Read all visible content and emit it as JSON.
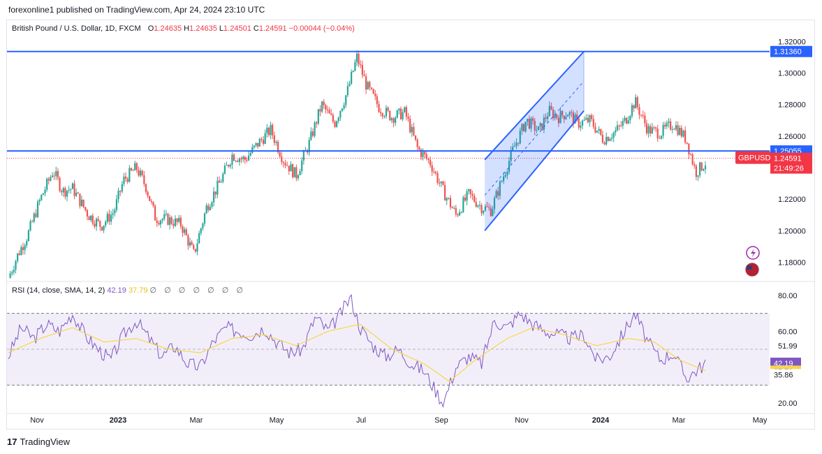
{
  "header": {
    "publisher": "forexonline1 published on TradingView.com, Apr 24, 2024 23:10 UTC"
  },
  "legend": {
    "symbol": "British Pound / U.S. Dollar, 1D, FXCM",
    "o_label": "O",
    "o": "1.24635",
    "h_label": "H",
    "h": "1.24635",
    "l_label": "L",
    "l": "1.24501",
    "c_label": "C",
    "c": "1.24591",
    "change": "−0.00044 (−0.04%)"
  },
  "rsi_legend": {
    "label": "RSI (14, close, SMA, 14, 2)",
    "rsi": "42.19",
    "sma": "37.79",
    "icons": "∅ ∅ ∅ ∅ ∅ ∅ ∅"
  },
  "footer": {
    "brand": "TradingView",
    "logo": "17"
  },
  "colors": {
    "up": "#26a69a",
    "down": "#ef5350",
    "line": "#2962ff",
    "rsi": "#7e57c2",
    "rsi_sma": "#f7d64b",
    "badge_blue": "#2962ff",
    "badge_red": "#f23645"
  },
  "chart_data": [
    {
      "type": "candlestick",
      "symbol": "GBPUSD",
      "ylim": [
        1.17,
        1.325
      ],
      "y_ticks": [
        "1.32000",
        "1.30000",
        "1.28000",
        "1.26000",
        "1.22000",
        "1.20000",
        "1.18000"
      ],
      "x_ticks": [
        "Nov",
        "2023",
        "Mar",
        "May",
        "Jul",
        "Sep",
        "Nov",
        "2024",
        "Mar",
        "May"
      ],
      "price_points": [
        {
          "x": 0,
          "y": 1.17
        },
        {
          "x": 0.015,
          "y": 1.185
        },
        {
          "x": 0.03,
          "y": 1.197
        },
        {
          "x": 0.05,
          "y": 1.22
        },
        {
          "x": 0.07,
          "y": 1.238
        },
        {
          "x": 0.085,
          "y": 1.225
        },
        {
          "x": 0.1,
          "y": 1.227
        },
        {
          "x": 0.125,
          "y": 1.21
        },
        {
          "x": 0.145,
          "y": 1.203
        },
        {
          "x": 0.165,
          "y": 1.212
        },
        {
          "x": 0.18,
          "y": 1.232
        },
        {
          "x": 0.2,
          "y": 1.24
        },
        {
          "x": 0.215,
          "y": 1.228
        },
        {
          "x": 0.23,
          "y": 1.208
        },
        {
          "x": 0.25,
          "y": 1.207
        },
        {
          "x": 0.27,
          "y": 1.204
        },
        {
          "x": 0.29,
          "y": 1.185
        },
        {
          "x": 0.31,
          "y": 1.215
        },
        {
          "x": 0.33,
          "y": 1.23
        },
        {
          "x": 0.35,
          "y": 1.248
        },
        {
          "x": 0.37,
          "y": 1.245
        },
        {
          "x": 0.39,
          "y": 1.255
        },
        {
          "x": 0.41,
          "y": 1.264
        },
        {
          "x": 0.43,
          "y": 1.245
        },
        {
          "x": 0.45,
          "y": 1.235
        },
        {
          "x": 0.47,
          "y": 1.255
        },
        {
          "x": 0.49,
          "y": 1.28
        },
        {
          "x": 0.51,
          "y": 1.268
        },
        {
          "x": 0.53,
          "y": 1.288
        },
        {
          "x": 0.545,
          "y": 1.31
        },
        {
          "x": 0.56,
          "y": 1.292
        },
        {
          "x": 0.58,
          "y": 1.278
        },
        {
          "x": 0.6,
          "y": 1.272
        },
        {
          "x": 0.62,
          "y": 1.275
        },
        {
          "x": 0.64,
          "y": 1.252
        },
        {
          "x": 0.66,
          "y": 1.243
        },
        {
          "x": 0.68,
          "y": 1.225
        },
        {
          "x": 0.7,
          "y": 1.21
        },
        {
          "x": 0.72,
          "y": 1.223
        },
        {
          "x": 0.74,
          "y": 1.215
        },
        {
          "x": 0.755,
          "y": 1.213
        },
        {
          "x": 0.77,
          "y": 1.23
        },
        {
          "x": 0.79,
          "y": 1.252
        },
        {
          "x": 0.81,
          "y": 1.27
        },
        {
          "x": 0.83,
          "y": 1.263
        },
        {
          "x": 0.845,
          "y": 1.276
        },
        {
          "x": 0.86,
          "y": 1.272
        },
        {
          "x": 0.875,
          "y": 1.275
        },
        {
          "x": 0.89,
          "y": 1.268
        },
        {
          "x": 0.91,
          "y": 1.27
        },
        {
          "x": 0.93,
          "y": 1.258
        },
        {
          "x": 0.95,
          "y": 1.263
        },
        {
          "x": 0.965,
          "y": 1.27
        },
        {
          "x": 0.98,
          "y": 1.282
        },
        {
          "x": 1.0,
          "y": 1.264
        },
        {
          "x": 1.02,
          "y": 1.262
        },
        {
          "x": 1.04,
          "y": 1.268
        },
        {
          "x": 1.06,
          "y": 1.258
        },
        {
          "x": 1.075,
          "y": 1.237
        },
        {
          "x": 1.09,
          "y": 1.243
        }
      ],
      "horizontal_levels": [
        {
          "price": 1.3136,
          "label": "1.31360"
        },
        {
          "price": 1.25055,
          "label": "1.25055"
        }
      ],
      "last_price": {
        "price": 1.24591,
        "symbol": "GBPUSD",
        "value": "1.24591",
        "countdown": "21:49:26"
      },
      "channel": {
        "lower_start": [
          0.745,
          1.2
        ],
        "lower_end": [
          0.9,
          1.276
        ],
        "upper_start": [
          0.745,
          1.245
        ],
        "upper_end": [
          0.9,
          1.3136
        ]
      }
    },
    {
      "type": "line",
      "name": "RSI",
      "ylim": [
        15,
        85
      ],
      "y_ticks": [
        "80.00",
        "60.00",
        "51.99",
        "20.00"
      ],
      "band": [
        30,
        70
      ],
      "badges": [
        {
          "value": 42.19,
          "label": "42.19"
        },
        {
          "value": 37.79,
          "label": "37.79"
        },
        {
          "value": 35.86,
          "label": "35.86"
        }
      ],
      "rsi_points": [
        {
          "x": 0,
          "y": 46
        },
        {
          "x": 0.02,
          "y": 62
        },
        {
          "x": 0.04,
          "y": 56
        },
        {
          "x": 0.06,
          "y": 64
        },
        {
          "x": 0.08,
          "y": 60
        },
        {
          "x": 0.1,
          "y": 70
        },
        {
          "x": 0.12,
          "y": 58
        },
        {
          "x": 0.14,
          "y": 50
        },
        {
          "x": 0.16,
          "y": 44
        },
        {
          "x": 0.18,
          "y": 58
        },
        {
          "x": 0.2,
          "y": 66
        },
        {
          "x": 0.22,
          "y": 56
        },
        {
          "x": 0.24,
          "y": 46
        },
        {
          "x": 0.26,
          "y": 52
        },
        {
          "x": 0.28,
          "y": 42
        },
        {
          "x": 0.3,
          "y": 40
        },
        {
          "x": 0.32,
          "y": 54
        },
        {
          "x": 0.34,
          "y": 62
        },
        {
          "x": 0.36,
          "y": 60
        },
        {
          "x": 0.38,
          "y": 58
        },
        {
          "x": 0.4,
          "y": 62
        },
        {
          "x": 0.42,
          "y": 54
        },
        {
          "x": 0.44,
          "y": 48
        },
        {
          "x": 0.46,
          "y": 50
        },
        {
          "x": 0.48,
          "y": 68
        },
        {
          "x": 0.5,
          "y": 60
        },
        {
          "x": 0.52,
          "y": 70
        },
        {
          "x": 0.535,
          "y": 79
        },
        {
          "x": 0.55,
          "y": 62
        },
        {
          "x": 0.57,
          "y": 52
        },
        {
          "x": 0.59,
          "y": 46
        },
        {
          "x": 0.61,
          "y": 50
        },
        {
          "x": 0.63,
          "y": 42
        },
        {
          "x": 0.65,
          "y": 38
        },
        {
          "x": 0.67,
          "y": 26
        },
        {
          "x": 0.68,
          "y": 20
        },
        {
          "x": 0.7,
          "y": 40
        },
        {
          "x": 0.72,
          "y": 46
        },
        {
          "x": 0.74,
          "y": 42
        },
        {
          "x": 0.76,
          "y": 66
        },
        {
          "x": 0.78,
          "y": 62
        },
        {
          "x": 0.8,
          "y": 70
        },
        {
          "x": 0.82,
          "y": 64
        },
        {
          "x": 0.84,
          "y": 60
        },
        {
          "x": 0.86,
          "y": 58
        },
        {
          "x": 0.88,
          "y": 56
        },
        {
          "x": 0.9,
          "y": 58
        },
        {
          "x": 0.92,
          "y": 44
        },
        {
          "x": 0.94,
          "y": 46
        },
        {
          "x": 0.96,
          "y": 58
        },
        {
          "x": 0.98,
          "y": 70
        },
        {
          "x": 1.0,
          "y": 54
        },
        {
          "x": 1.02,
          "y": 44
        },
        {
          "x": 1.04,
          "y": 48
        },
        {
          "x": 1.06,
          "y": 34
        },
        {
          "x": 1.075,
          "y": 38
        },
        {
          "x": 1.09,
          "y": 42
        }
      ],
      "sma_points": [
        {
          "x": 0,
          "y": 48
        },
        {
          "x": 0.05,
          "y": 56
        },
        {
          "x": 0.1,
          "y": 62
        },
        {
          "x": 0.15,
          "y": 54
        },
        {
          "x": 0.2,
          "y": 56
        },
        {
          "x": 0.25,
          "y": 50
        },
        {
          "x": 0.3,
          "y": 48
        },
        {
          "x": 0.35,
          "y": 56
        },
        {
          "x": 0.4,
          "y": 58
        },
        {
          "x": 0.45,
          "y": 52
        },
        {
          "x": 0.5,
          "y": 60
        },
        {
          "x": 0.55,
          "y": 64
        },
        {
          "x": 0.6,
          "y": 50
        },
        {
          "x": 0.65,
          "y": 42
        },
        {
          "x": 0.69,
          "y": 32
        },
        {
          "x": 0.73,
          "y": 44
        },
        {
          "x": 0.78,
          "y": 56
        },
        {
          "x": 0.82,
          "y": 62
        },
        {
          "x": 0.87,
          "y": 58
        },
        {
          "x": 0.92,
          "y": 52
        },
        {
          "x": 0.97,
          "y": 56
        },
        {
          "x": 1.01,
          "y": 54
        },
        {
          "x": 1.05,
          "y": 44
        },
        {
          "x": 1.09,
          "y": 38
        }
      ]
    }
  ]
}
